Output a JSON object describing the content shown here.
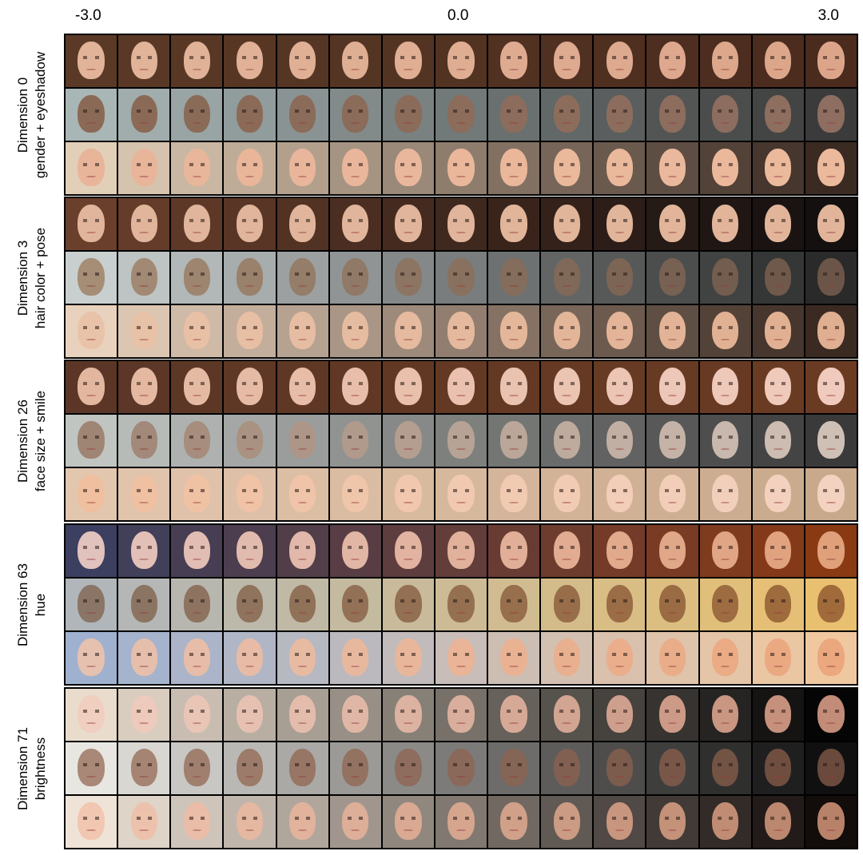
{
  "axis": {
    "left": "-3.0",
    "center": "0.0",
    "right": "3.0"
  },
  "sections": [
    {
      "dimension": "Dimension 0",
      "attribute": "gender + eyeshadow",
      "hair_colors": [
        "#5a3a26",
        "#a9b6b6",
        "#e2cfb8"
      ],
      "skin_colors": [
        "#e1b49a",
        "#8a6a56",
        "#e8b59a"
      ]
    },
    {
      "dimension": "Dimension 3",
      "attribute": "hair color + pose",
      "hair_colors": [
        "#6a3f2b",
        "#c9cfcf",
        "#e8d2bd"
      ],
      "skin_colors": [
        "#e0b59b",
        "#a58d76",
        "#e9c3a9"
      ]
    },
    {
      "dimension": "Dimension 26",
      "attribute": "face size + smile",
      "hair_colors": [
        "#5b3626",
        "#c1c5c2",
        "#e3c6ae"
      ],
      "skin_colors": [
        "#e3b79f",
        "#9f8574",
        "#efbf9f"
      ]
    },
    {
      "dimension": "Dimension 63",
      "attribute": "hue",
      "hair_colors": [
        "#3c3f5f",
        "#b0b6ba",
        "#9fb1cf"
      ],
      "skin_colors": [
        "#e2c2bd",
        "#8a7566",
        "#e6c1b0"
      ]
    },
    {
      "dimension": "Dimension 71",
      "attribute": "brightness",
      "hair_colors": [
        "#e9dccd",
        "#e8e6e1",
        "#efe3d7"
      ],
      "skin_colors": [
        "#f0cfc0",
        "#a98877",
        "#f1c7b1"
      ]
    }
  ]
}
